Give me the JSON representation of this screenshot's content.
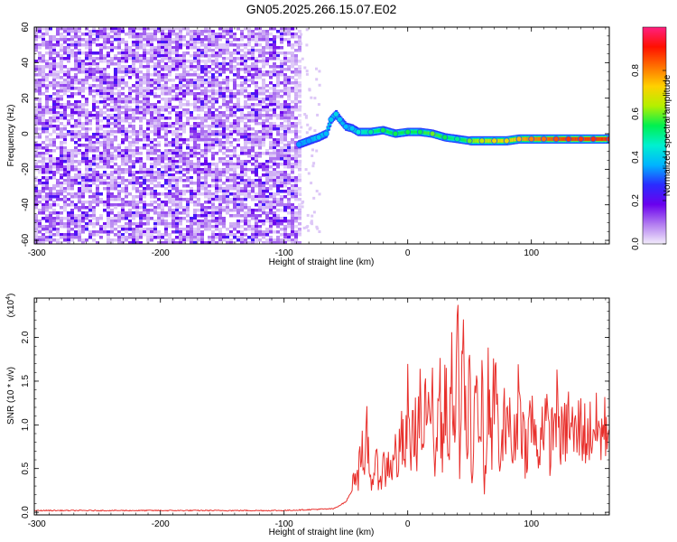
{
  "title": "GN05.2025.266.15.07.E02",
  "chart_data": [
    {
      "type": "heatmap",
      "xlabel": "Height of straight line (km)",
      "ylabel": "Frequency (Hz)",
      "xlim": [
        -302,
        163
      ],
      "ylim": [
        -62,
        60
      ],
      "xticks": [
        "-300",
        "-200",
        "-100",
        "0",
        "100"
      ],
      "yticks": [
        "60",
        "40",
        "20",
        "0",
        "-20",
        "-40",
        "-60"
      ],
      "colorbar": {
        "label": "Normalized spectral amplitude",
        "range": [
          0.0,
          1.0
        ],
        "ticks": [
          "0.0",
          "0.2",
          "0.4",
          "0.6",
          "0.8"
        ],
        "colors": [
          "#f2ecfb",
          "#b27cf0",
          "#6a00ee",
          "#2a2cff",
          "#00b4ff",
          "#00f0d0",
          "#00f050",
          "#b4f000",
          "#ffd000",
          "#ff7000",
          "#ff1000",
          "#ff2080"
        ]
      },
      "noise_region": {
        "x": [
          -302,
          -88
        ],
        "y": [
          -62,
          60
        ],
        "level": 0.1
      },
      "ridge": {
        "x": [
          -88,
          -80,
          -72,
          -66,
          -62,
          -58,
          -55,
          -50,
          -45,
          -40,
          -30,
          -20,
          -10,
          0,
          10,
          20,
          30,
          40,
          50,
          60,
          70,
          80,
          90,
          100,
          110,
          120,
          130,
          140,
          150,
          163
        ],
        "frequency": [
          -6,
          -4,
          -2,
          0,
          8,
          11,
          8,
          4,
          3,
          1,
          1,
          2,
          0,
          1,
          1,
          0,
          -2,
          -3,
          -4,
          -4,
          -4,
          -4,
          -3,
          -3,
          -3,
          -3,
          -3,
          -3,
          -3,
          -3
        ],
        "amplitude": [
          0.35,
          0.35,
          0.4,
          0.38,
          0.4,
          0.42,
          0.4,
          0.38,
          0.4,
          0.45,
          0.5,
          0.55,
          0.55,
          0.55,
          0.55,
          0.6,
          0.55,
          0.5,
          0.6,
          0.65,
          0.7,
          0.7,
          0.75,
          0.8,
          0.82,
          0.85,
          0.87,
          0.87,
          0.88,
          0.88
        ]
      }
    },
    {
      "type": "line",
      "xlabel": "Height of straight line (km)",
      "ylabel": "SNR (10 * v/v)",
      "scale_label": "(x10",
      "scale_exp": "4",
      "scale_close": ")",
      "xlim": [
        -302,
        163
      ],
      "ylim": [
        -0.03,
        2.45
      ],
      "xticks": [
        "-300",
        "-200",
        "-100",
        "0",
        "100"
      ],
      "yticks": [
        "0.0",
        "0.5",
        "1.0",
        "1.5",
        "2.0"
      ],
      "series": [
        {
          "color": "#e8302c",
          "x": [
            -302,
            -200,
            -100,
            -60,
            -50,
            -45,
            -42,
            -40,
            -38,
            -35,
            -33,
            -30,
            -28,
            -25,
            -22,
            -20,
            -18,
            -15,
            -12,
            -10,
            -8,
            -5,
            -2,
            0,
            2,
            5,
            8,
            10,
            12,
            15,
            18,
            20,
            22,
            25,
            28,
            30,
            33,
            35,
            38,
            40,
            42,
            45,
            48,
            50,
            52,
            55,
            58,
            60,
            62,
            65,
            68,
            70,
            75,
            80,
            85,
            90,
            95,
            100,
            105,
            110,
            115,
            120,
            125,
            130,
            135,
            140,
            145,
            150,
            155,
            160,
            163
          ],
          "y": [
            0.02,
            0.02,
            0.02,
            0.04,
            0.12,
            0.25,
            0.55,
            0.4,
            0.9,
            0.3,
            0.92,
            0.35,
            0.45,
            0.5,
            0.4,
            0.55,
            0.45,
            0.6,
            0.5,
            0.7,
            0.55,
            0.85,
            0.6,
            1.2,
            0.7,
            1.0,
            0.8,
            1.45,
            0.6,
            1.3,
            0.75,
            1.6,
            0.55,
            1.7,
            0.6,
            1.6,
            0.5,
            1.9,
            0.6,
            2.45,
            0.5,
            1.9,
            0.55,
            1.8,
            0.3,
            1.7,
            0.6,
            1.5,
            0.2,
            1.4,
            0.6,
            1.6,
            0.5,
            1.3,
            0.6,
            1.4,
            0.7,
            1.1,
            0.65,
            1.15,
            0.75,
            1.2,
            0.8,
            1.05,
            0.85,
            1.0,
            0.85,
            1.0,
            0.9,
            0.95,
            0.95
          ]
        }
      ]
    }
  ]
}
